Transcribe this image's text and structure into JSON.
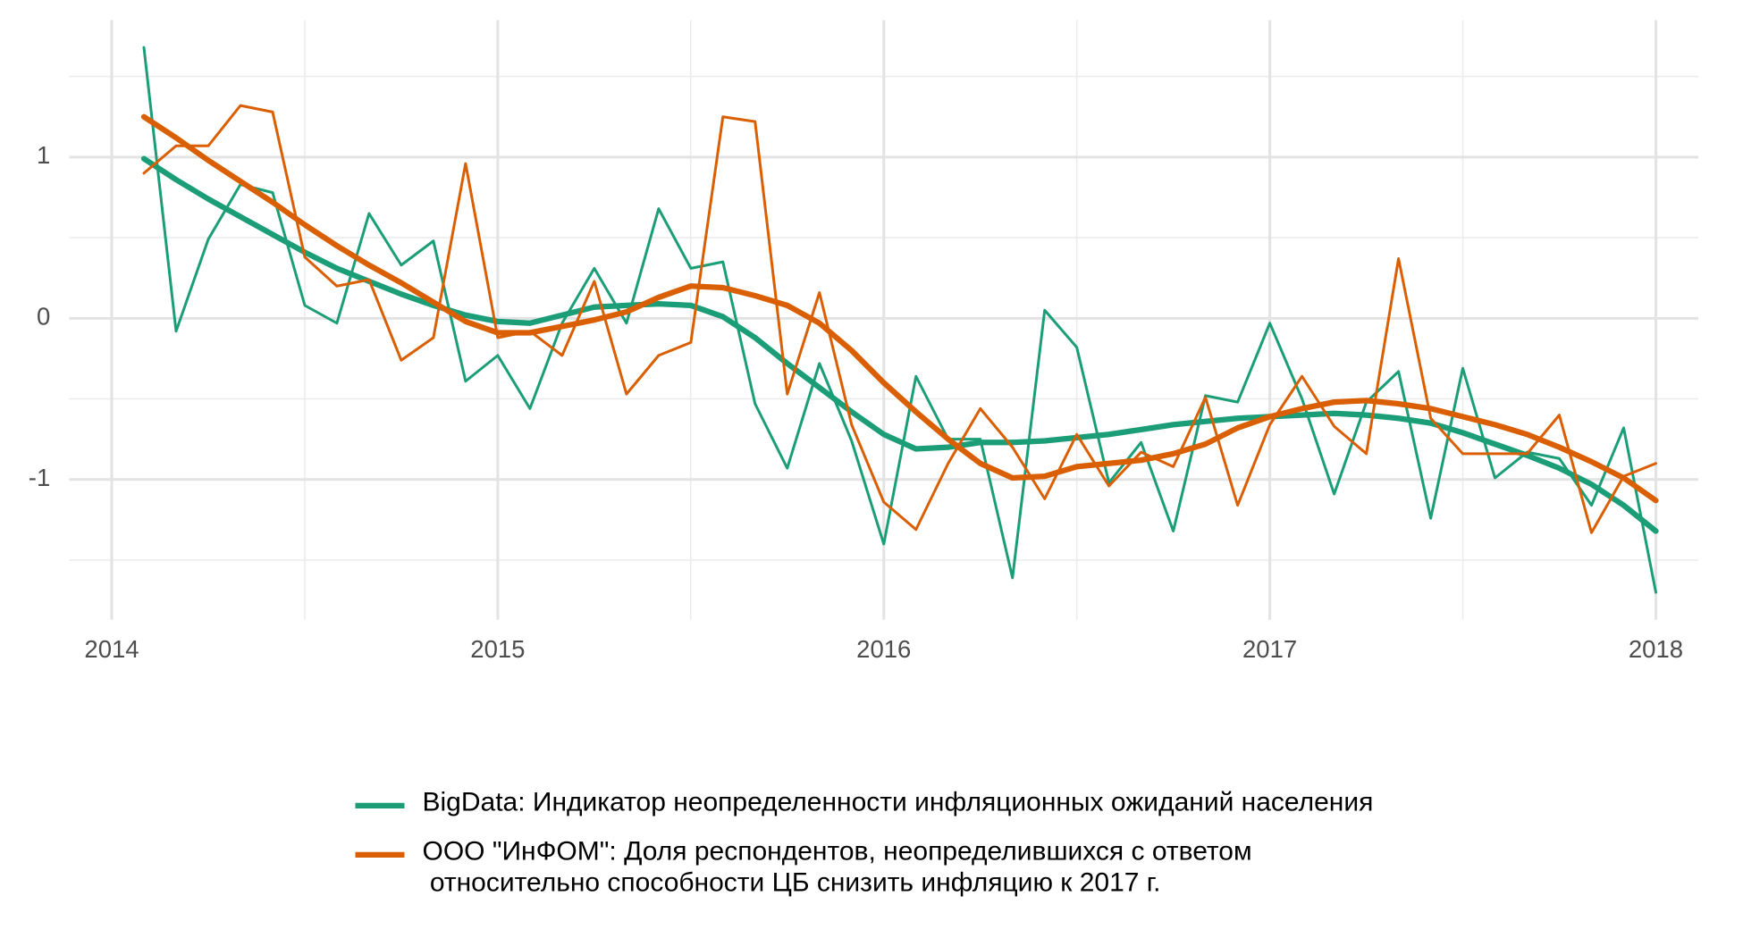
{
  "chart_data": {
    "type": "line",
    "x": [
      2014.0833,
      2014.1667,
      2014.25,
      2014.3333,
      2014.4167,
      2014.5,
      2014.5833,
      2014.6667,
      2014.75,
      2014.8333,
      2014.9167,
      2015.0,
      2015.0833,
      2015.1667,
      2015.25,
      2015.3333,
      2015.4167,
      2015.5,
      2015.5833,
      2015.6667,
      2015.75,
      2015.8333,
      2015.9167,
      2016.0,
      2016.0833,
      2016.1667,
      2016.25,
      2016.3333,
      2016.4167,
      2016.5,
      2016.5833,
      2016.6667,
      2016.75,
      2016.8333,
      2016.9167,
      2017.0,
      2017.0833,
      2017.1667,
      2017.25,
      2017.3333,
      2017.4167,
      2017.5,
      2017.5833,
      2017.6667,
      2017.75,
      2017.8333,
      2017.9167,
      2018.0
    ],
    "series": [
      {
        "name": "BigData: Индикатор неопределенности инфляционных ожиданий населения",
        "color": "#1b9e77",
        "values": [
          1.68,
          -0.08,
          0.49,
          0.83,
          0.78,
          0.08,
          -0.03,
          0.65,
          0.33,
          0.48,
          -0.39,
          -0.23,
          -0.56,
          -0.03,
          0.31,
          -0.03,
          0.68,
          0.31,
          0.35,
          -0.53,
          -0.93,
          -0.28,
          -0.76,
          -1.4,
          -0.36,
          -0.75,
          -0.75,
          -1.61,
          0.05,
          -0.18,
          -1.02,
          -0.77,
          -1.32,
          -0.48,
          -0.52,
          -0.03,
          -0.5,
          -1.09,
          -0.52,
          -0.33,
          -1.24,
          -0.31,
          -0.99,
          -0.83,
          -0.87,
          -1.16,
          -0.68,
          -1.7
        ],
        "smooth_values": [
          0.99,
          0.86,
          0.74,
          0.63,
          0.52,
          0.41,
          0.31,
          0.23,
          0.15,
          0.08,
          0.02,
          -0.02,
          -0.03,
          0.02,
          0.07,
          0.08,
          0.09,
          0.08,
          0.01,
          -0.12,
          -0.28,
          -0.43,
          -0.58,
          -0.72,
          -0.81,
          -0.8,
          -0.77,
          -0.77,
          -0.76,
          -0.74,
          -0.72,
          -0.69,
          -0.66,
          -0.64,
          -0.62,
          -0.61,
          -0.6,
          -0.59,
          -0.6,
          -0.62,
          -0.65,
          -0.71,
          -0.78,
          -0.85,
          -0.93,
          -1.03,
          -1.16,
          -1.32
        ]
      },
      {
        "name": "ООО \"ИнФОМ\": Доля респондентов, неопределившихся с ответом\n относительно способности ЦБ снизить инфляцию к 2017 г.",
        "color": "#d95f02",
        "values": [
          0.9,
          1.07,
          1.07,
          1.32,
          1.28,
          0.38,
          0.2,
          0.24,
          -0.26,
          -0.12,
          0.96,
          -0.12,
          -0.08,
          -0.23,
          0.23,
          -0.47,
          -0.23,
          -0.15,
          1.25,
          1.22,
          -0.47,
          0.16,
          -0.66,
          -1.14,
          -1.31,
          -0.9,
          -0.56,
          -0.8,
          -1.12,
          -0.72,
          -1.04,
          -0.83,
          -0.92,
          -0.49,
          -1.16,
          -0.66,
          -0.36,
          -0.67,
          -0.84,
          0.37,
          -0.62,
          -0.84,
          -0.84,
          -0.84,
          -0.6,
          -1.33,
          -0.98,
          -0.9
        ],
        "smooth_values": [
          1.25,
          1.12,
          0.98,
          0.85,
          0.72,
          0.58,
          0.45,
          0.33,
          0.22,
          0.1,
          -0.02,
          -0.09,
          -0.09,
          -0.05,
          -0.01,
          0.04,
          0.13,
          0.2,
          0.19,
          0.14,
          0.08,
          -0.03,
          -0.2,
          -0.4,
          -0.58,
          -0.75,
          -0.9,
          -0.99,
          -0.98,
          -0.92,
          -0.9,
          -0.88,
          -0.84,
          -0.78,
          -0.68,
          -0.61,
          -0.56,
          -0.52,
          -0.51,
          -0.53,
          -0.56,
          -0.61,
          -0.66,
          -0.72,
          -0.8,
          -0.89,
          -0.99,
          -1.13
        ]
      }
    ],
    "xlim": [
      2013.89,
      2018.11
    ],
    "xticks": [
      2014,
      2015,
      2016,
      2017,
      2018
    ],
    "xminor_ticks": [
      2014.5,
      2015.5,
      2016.5,
      2017.5
    ],
    "ylim": [
      -1.87,
      1.85
    ],
    "yticks": [
      -1,
      0,
      1
    ],
    "yminor_ticks": [
      -1.5,
      -0.5,
      0.5,
      1.5
    ],
    "grid": true,
    "legend": "bottom"
  }
}
